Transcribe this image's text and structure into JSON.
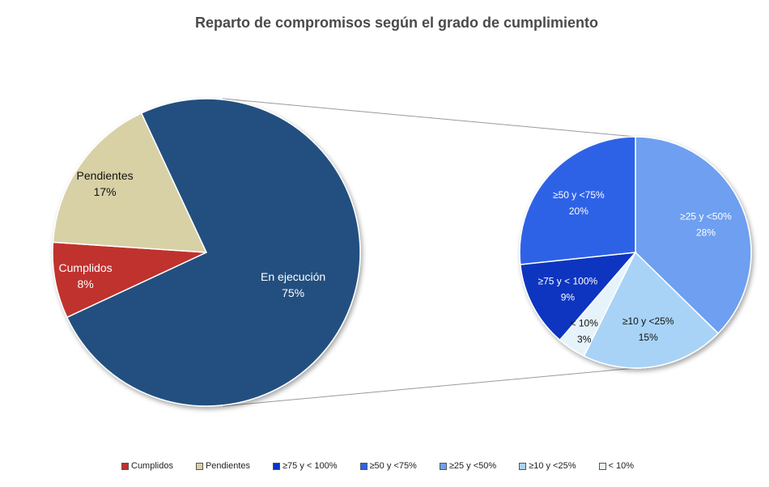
{
  "chart_data": {
    "type": "pie",
    "subtype": "pie-of-pie",
    "title": "Reparto de compromisos según el grado de cumplimiento",
    "main_pie": [
      {
        "label": "Cumplidos",
        "value_label": "8%",
        "value": 8,
        "color": "#c0302f"
      },
      {
        "label": "Pendientes",
        "value_label": "17%",
        "value": 17,
        "color": "#d8d1a6"
      },
      {
        "label": "En ejecución",
        "value_label": "75%",
        "value": 75,
        "color": "#24507f"
      }
    ],
    "secondary_pie": {
      "breakdown_of": "En ejecución",
      "slices": [
        {
          "label": "≥25 y <50%",
          "value_label": "28%",
          "value": 28,
          "color": "#6e9ff0"
        },
        {
          "label": "≥10 y <25%",
          "value_label": "15%",
          "value": 15,
          "color": "#a8d3f7"
        },
        {
          "label": "< 10%",
          "value_label": "3%",
          "value": 3,
          "color": "#e6f3fb"
        },
        {
          "label": "≥75 y < 100%",
          "value_label": "9%",
          "value": 9,
          "color": "#0a35c0"
        },
        {
          "label": "≥50 y <75%",
          "value_label": "20%",
          "value": 20,
          "color": "#2d62e6"
        }
      ]
    },
    "legend": [
      {
        "label": "Cumplidos",
        "color": "#c0302f"
      },
      {
        "label": "Pendientes",
        "color": "#d8d1a6"
      },
      {
        "label": "≥75 y < 100%",
        "color": "#0a35c0"
      },
      {
        "label": "≥50 y <75%",
        "color": "#2d62e6"
      },
      {
        "label": "≥25 y <50%",
        "color": "#6e9ff0"
      },
      {
        "label": "≥10 y <25%",
        "color": "#a8d3f7"
      },
      {
        "label": "< 10%",
        "color": "#e6f3fb"
      }
    ],
    "legend_position": "bottom"
  }
}
